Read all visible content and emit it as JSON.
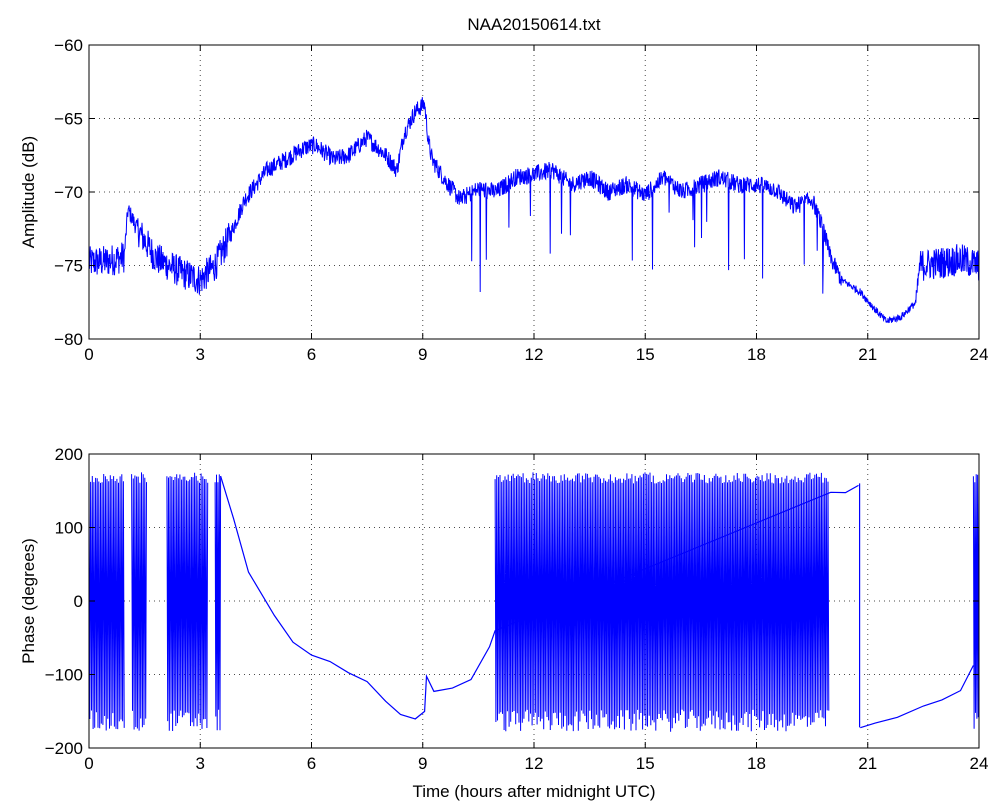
{
  "chart_data": [
    {
      "type": "line",
      "title": "NAA20150614.txt",
      "xlabel": "",
      "ylabel": "Amplitude (dB)",
      "xlim": [
        0,
        24
      ],
      "ylim": [
        -80,
        -60
      ],
      "xticks": [
        "0",
        "3",
        "6",
        "9",
        "12",
        "15",
        "18",
        "21",
        "24"
      ],
      "yticks": [
        "-80",
        "-75",
        "-70",
        "-65",
        "-60"
      ],
      "grid": true,
      "color": "#0000ff",
      "noise": 1.2,
      "x": [
        0,
        0.5,
        0.95,
        1.05,
        1.3,
        1.8,
        2.5,
        3.0,
        3.4,
        3.8,
        4.2,
        4.8,
        5.3,
        5.8,
        6.1,
        6.6,
        7.0,
        7.5,
        8.0,
        8.3,
        8.5,
        8.8,
        9.05,
        9.15,
        9.25,
        9.6,
        10.0,
        10.5,
        11.0,
        11.5,
        12.0,
        12.5,
        13.0,
        13.5,
        14.0,
        14.5,
        15.0,
        15.5,
        16.0,
        16.5,
        17.0,
        17.5,
        18.0,
        18.5,
        19.0,
        19.5,
        19.8,
        20.0,
        20.3,
        20.8,
        21.2,
        21.5,
        21.9,
        22.3,
        22.4,
        23.0,
        23.5,
        24.0
      ],
      "y": [
        -74.8,
        -74.7,
        -74.4,
        -71.2,
        -72.5,
        -74.5,
        -75.5,
        -76.0,
        -75.0,
        -73.0,
        -70.5,
        -68.5,
        -67.8,
        -67.0,
        -66.8,
        -67.8,
        -67.5,
        -66.3,
        -67.5,
        -68.5,
        -66.0,
        -64.5,
        -64.0,
        -66.5,
        -67.8,
        -69.2,
        -70.5,
        -69.8,
        -70.0,
        -69.0,
        -68.8,
        -68.5,
        -69.5,
        -69.0,
        -70.0,
        -69.5,
        -70.2,
        -69.0,
        -70.0,
        -69.5,
        -69.0,
        -69.5,
        -69.5,
        -69.8,
        -71.0,
        -70.5,
        -72.5,
        -74.5,
        -76.0,
        -76.8,
        -78.0,
        -78.8,
        -78.5,
        -77.5,
        -75.0,
        -74.8,
        -74.6,
        -75.0
      ]
    },
    {
      "type": "line",
      "title": "",
      "xlabel": "Time (hours after midnight UTC)",
      "ylabel": "Phase (degrees)",
      "xlim": [
        0,
        24
      ],
      "ylim": [
        -200,
        200
      ],
      "xticks": [
        "0",
        "3",
        "6",
        "9",
        "12",
        "15",
        "18",
        "21",
        "24"
      ],
      "yticks": [
        "-200",
        "-100",
        "0",
        "100",
        "200"
      ],
      "grid": true,
      "color": "#0000ff",
      "wrap_intervals": [
        [
          0.0,
          0.95
        ],
        [
          1.15,
          1.55
        ],
        [
          2.1,
          3.2
        ],
        [
          3.4,
          3.55
        ],
        [
          10.95,
          19.95
        ],
        [
          23.85,
          24.0
        ]
      ],
      "x": [
        3.55,
        3.9,
        4.3,
        5.0,
        5.5,
        6.0,
        6.5,
        7.0,
        7.5,
        8.0,
        8.4,
        8.8,
        9.05,
        9.1,
        9.3,
        9.8,
        10.3,
        10.8,
        10.95,
        20.0,
        20.4,
        20.75,
        20.8,
        21.2,
        21.8,
        22.5,
        23.0,
        23.5,
        23.85
      ],
      "y": [
        170.0,
        110.0,
        40.0,
        -20.0,
        -55.0,
        -75.0,
        -85.0,
        -95.0,
        -110.0,
        -135.0,
        -155.0,
        -160.0,
        -150.0,
        -100.0,
        -125.0,
        -120.0,
        -105.0,
        -65.0,
        -40.0,
        150.0,
        145.0,
        160.0,
        -170.0,
        -165.0,
        -160.0,
        -140.0,
        -135.0,
        -120.0,
        -85.0
      ]
    }
  ]
}
